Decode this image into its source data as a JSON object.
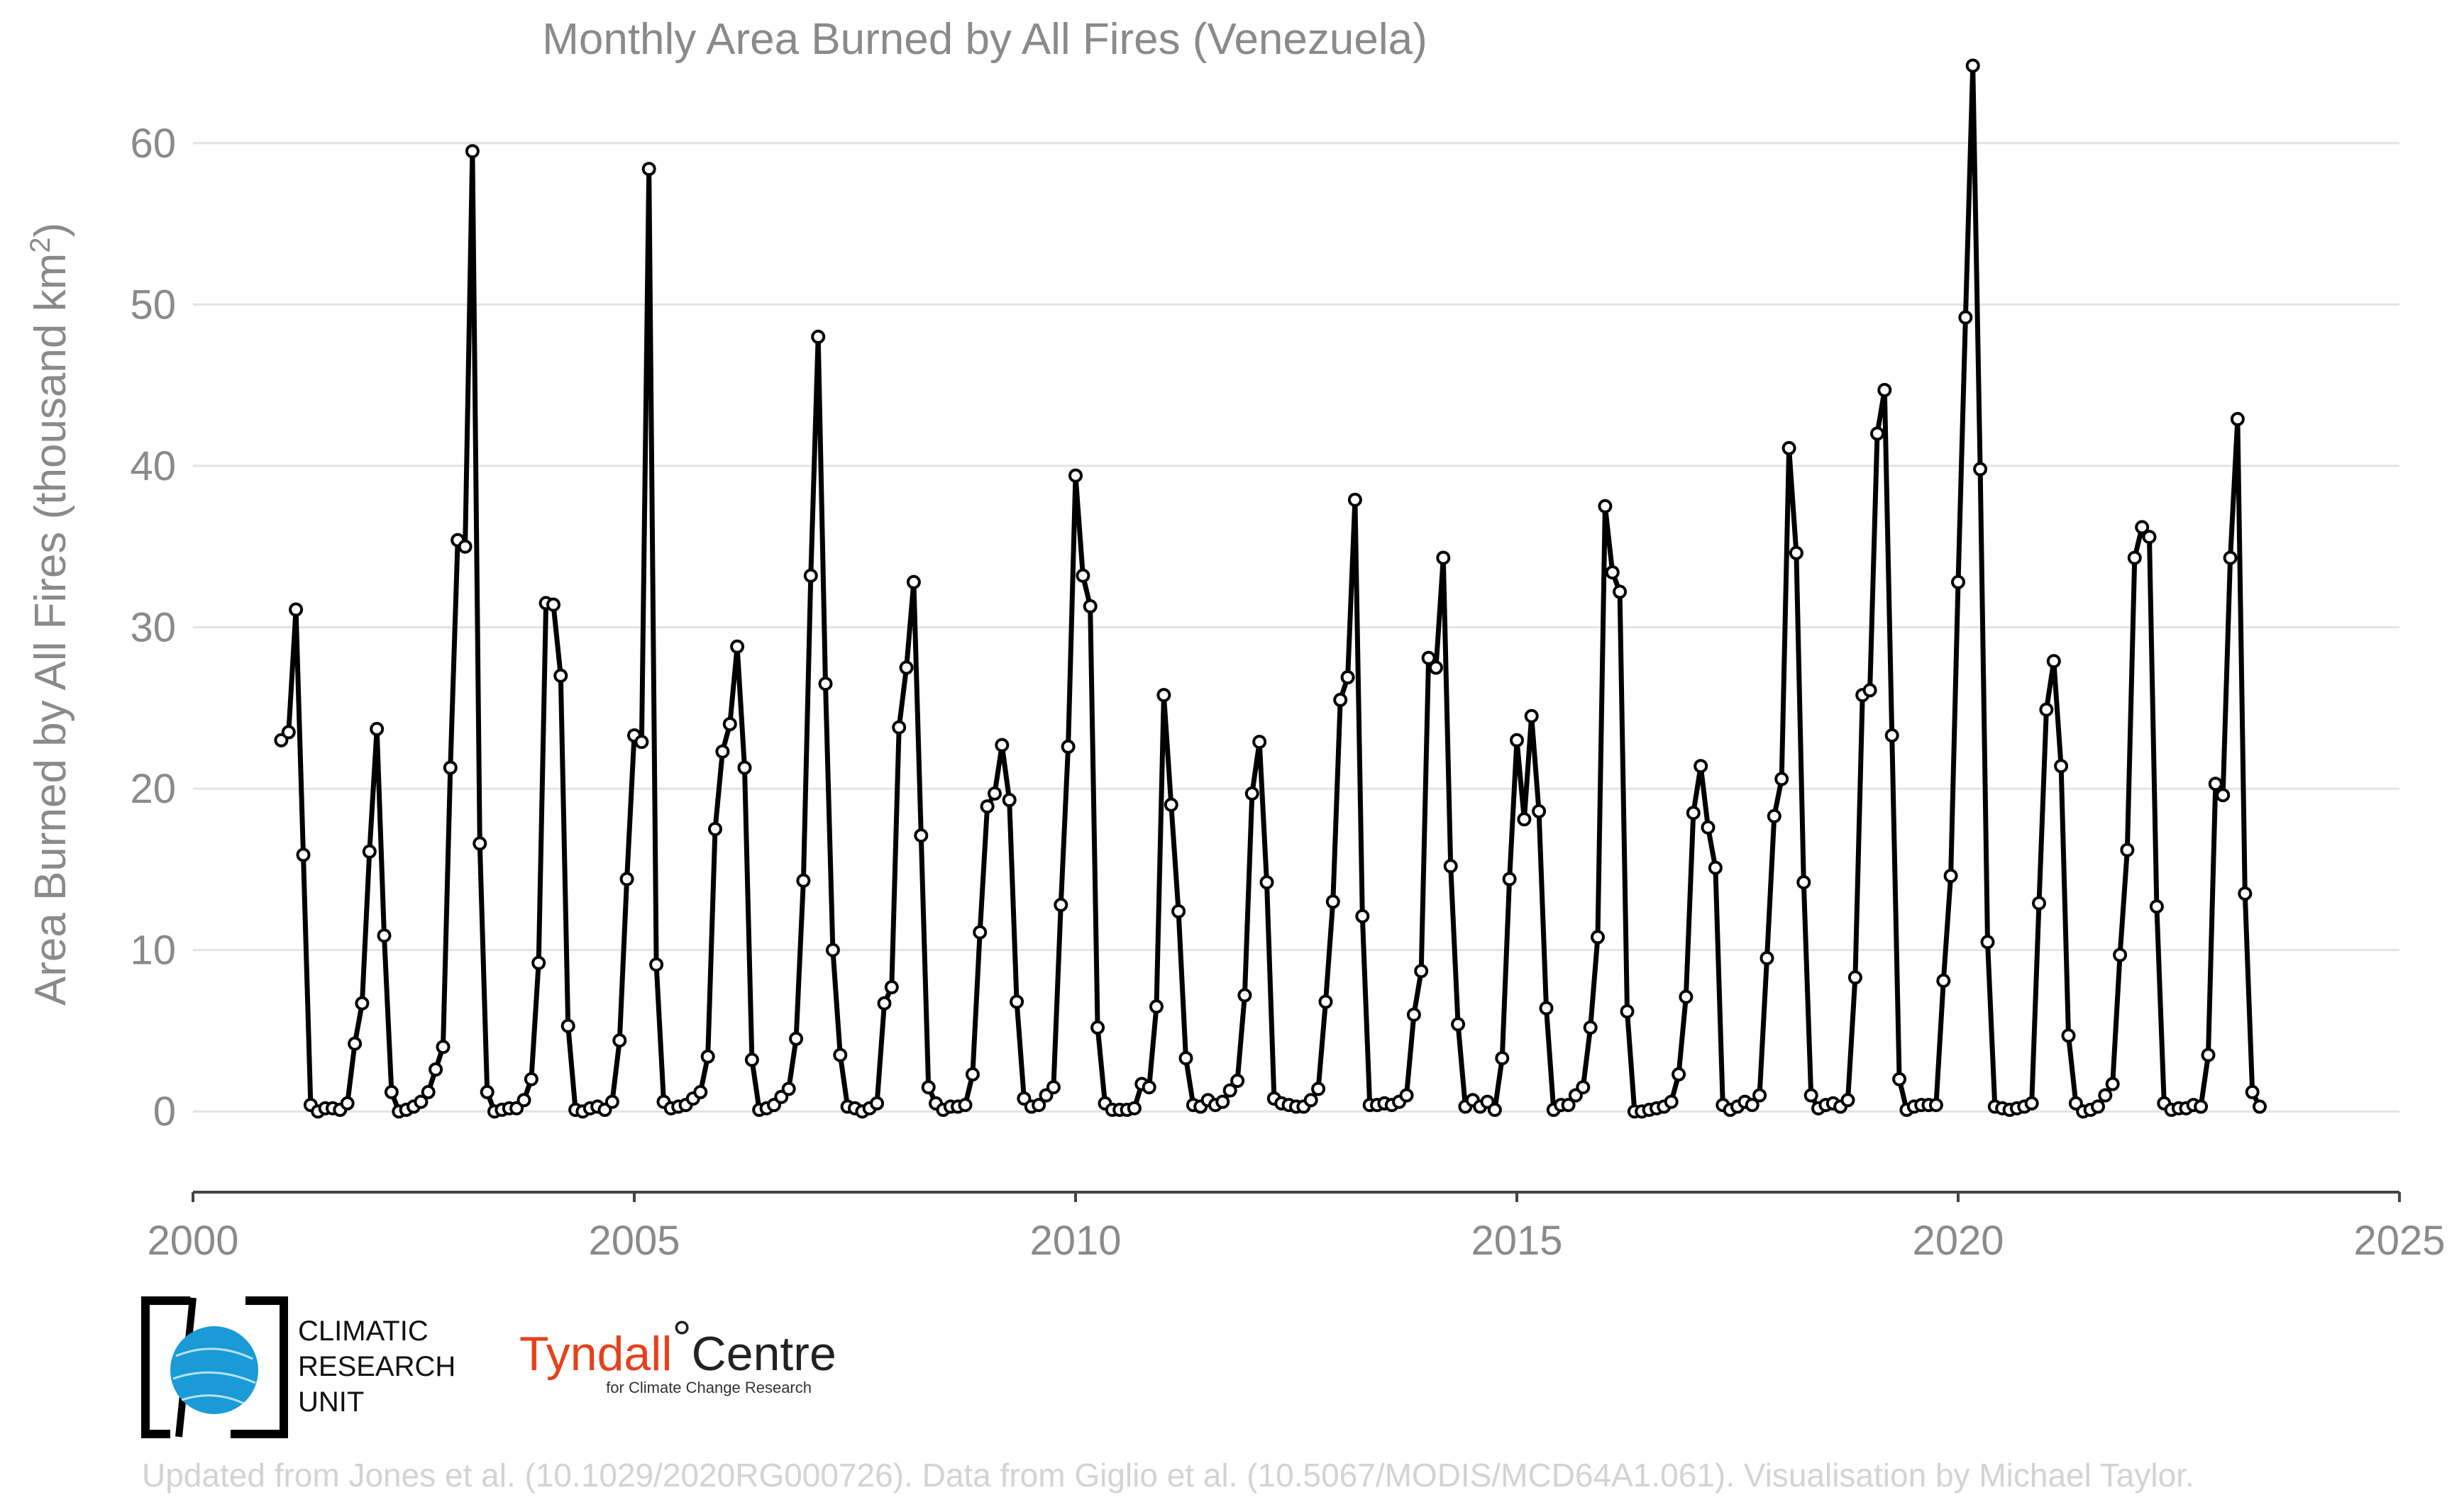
{
  "chart_data": {
    "type": "line",
    "title": "Monthly Area Burned by All Fires (Venezuela)",
    "ylabel_main": "Area Burned by All Fires (thousand km",
    "ylabel_sup": "2",
    "ylabel_close": ")",
    "xlim": [
      2000,
      2025
    ],
    "ylim": [
      -5,
      65
    ],
    "x_ticks": [
      "2000",
      "2005",
      "2010",
      "2015",
      "2020",
      "2025"
    ],
    "y_ticks": [
      "0",
      "10",
      "20",
      "30",
      "40",
      "50",
      "60"
    ],
    "grid": true,
    "series": [
      {
        "start_year": 2001,
        "start_month": 1,
        "values": [
          23.0,
          23.5,
          31.1,
          15.9,
          0.4,
          0.0,
          0.2,
          0.2,
          0.1,
          0.5,
          4.2,
          6.7,
          16.1,
          23.7,
          10.9,
          1.2,
          0.0,
          0.1,
          0.3,
          0.6,
          1.2,
          2.6,
          4.0,
          21.3,
          35.4,
          35.0,
          59.5,
          16.6,
          1.2,
          0.0,
          0.1,
          0.2,
          0.2,
          0.7,
          2.0,
          9.2,
          31.5,
          31.4,
          27.0,
          5.3,
          0.1,
          0.0,
          0.2,
          0.3,
          0.1,
          0.6,
          4.4,
          14.4,
          23.3,
          22.9,
          58.4,
          9.1,
          0.6,
          0.2,
          0.3,
          0.4,
          0.8,
          1.2,
          3.4,
          17.5,
          22.3,
          24.0,
          28.8,
          21.3,
          3.2,
          0.1,
          0.2,
          0.4,
          0.9,
          1.4,
          4.5,
          14.3,
          33.2,
          48.0,
          26.5,
          10.0,
          3.5,
          0.3,
          0.2,
          0.0,
          0.2,
          0.5,
          6.7,
          7.7,
          23.8,
          27.5,
          32.8,
          17.1,
          1.5,
          0.5,
          0.1,
          0.3,
          0.3,
          0.4,
          2.3,
          11.1,
          18.9,
          19.7,
          22.7,
          19.3,
          6.8,
          0.8,
          0.3,
          0.4,
          1.0,
          1.5,
          12.8,
          22.6,
          39.4,
          33.2,
          31.3,
          5.2,
          0.5,
          0.1,
          0.1,
          0.1,
          0.2,
          1.7,
          1.5,
          6.5,
          25.8,
          19.0,
          12.4,
          3.3,
          0.4,
          0.3,
          0.7,
          0.4,
          0.6,
          1.3,
          1.9,
          7.2,
          19.7,
          22.9,
          14.2,
          0.8,
          0.5,
          0.4,
          0.3,
          0.3,
          0.7,
          1.4,
          6.8,
          13.0,
          25.5,
          26.9,
          37.9,
          12.1,
          0.4,
          0.4,
          0.5,
          0.4,
          0.6,
          1.0,
          6.0,
          8.7,
          28.1,
          27.5,
          34.3,
          15.2,
          5.4,
          0.3,
          0.7,
          0.3,
          0.6,
          0.1,
          3.3,
          14.4,
          23.0,
          18.1,
          24.5,
          18.6,
          6.4,
          0.1,
          0.4,
          0.4,
          1.0,
          1.5,
          5.2,
          10.8,
          37.5,
          33.4,
          32.2,
          6.2,
          0.0,
          0.0,
          0.1,
          0.2,
          0.3,
          0.6,
          2.3,
          7.1,
          18.5,
          21.4,
          17.6,
          15.1,
          0.4,
          0.1,
          0.3,
          0.6,
          0.4,
          1.0,
          9.5,
          18.3,
          20.6,
          41.1,
          34.6,
          14.2,
          1.0,
          0.2,
          0.4,
          0.5,
          0.3,
          0.7,
          8.3,
          25.8,
          26.1,
          42.0,
          44.7,
          23.3,
          2.0,
          0.1,
          0.3,
          0.4,
          0.4,
          0.4,
          8.1,
          14.6,
          32.8,
          49.2,
          64.8,
          39.8,
          10.5,
          0.3,
          0.2,
          0.1,
          0.2,
          0.3,
          0.5,
          12.9,
          24.9,
          27.9,
          21.4,
          4.7,
          0.5,
          0.0,
          0.1,
          0.3,
          1.0,
          1.7,
          9.7,
          16.2,
          34.3,
          36.2,
          35.6,
          12.7,
          0.5,
          0.1,
          0.2,
          0.2,
          0.4,
          0.3,
          3.5,
          20.3,
          19.6,
          34.3,
          42.9,
          13.5,
          1.2,
          0.3
        ]
      }
    ]
  },
  "footer": {
    "credit": "Updated from Jones et al. (10.1029/2020RG000726). Data from Giglio et al. (10.5067/MODIS/MCD64A1.061). Visualisation by Michael Taylor."
  },
  "logos": {
    "cru": {
      "line1": "CLIMATIC",
      "line2": "RESEARCH",
      "line3": "UNIT",
      "globe_color": "#1a9bd7"
    },
    "tyndall": {
      "name_red": "Tyndall",
      "degree": "°",
      "name_dark": "Centre",
      "subtitle": "for Climate Change Research",
      "red_color": "#e8401c"
    }
  }
}
